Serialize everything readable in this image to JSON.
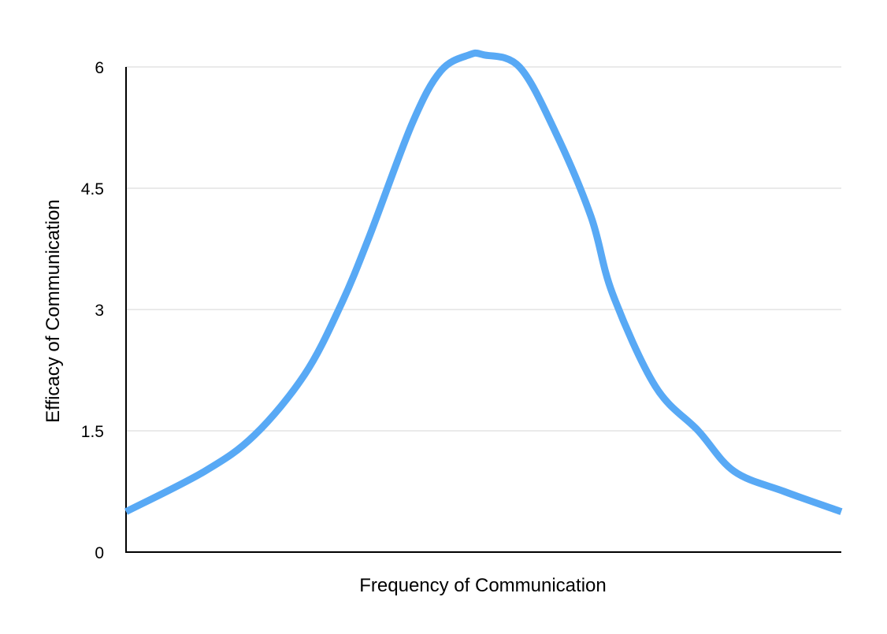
{
  "chart_data": {
    "type": "line",
    "title": "",
    "xlabel": "Frequency of Communication",
    "ylabel": "Efficacy of Communication",
    "ylim": [
      0,
      6
    ],
    "yticks": [
      "0",
      "1.5",
      "3",
      "4.5",
      "6"
    ],
    "ytick_values": [
      0,
      1.5,
      3,
      4.5,
      6
    ],
    "xlim": [
      0,
      100
    ],
    "grid": true,
    "legend": "none",
    "series": [
      {
        "color": "#58a9f5",
        "x": [
          0,
          11,
          18,
          25,
          30,
          34,
          40,
          44,
          48,
          50,
          55,
          60,
          65,
          68,
          74,
          80,
          85,
          92,
          100
        ],
        "y": [
          0.5,
          1.0,
          1.45,
          2.2,
          3.05,
          3.9,
          5.3,
          5.95,
          6.15,
          6.15,
          6.0,
          5.2,
          4.15,
          3.2,
          2.05,
          1.5,
          1.0,
          0.75,
          0.5
        ]
      }
    ]
  }
}
